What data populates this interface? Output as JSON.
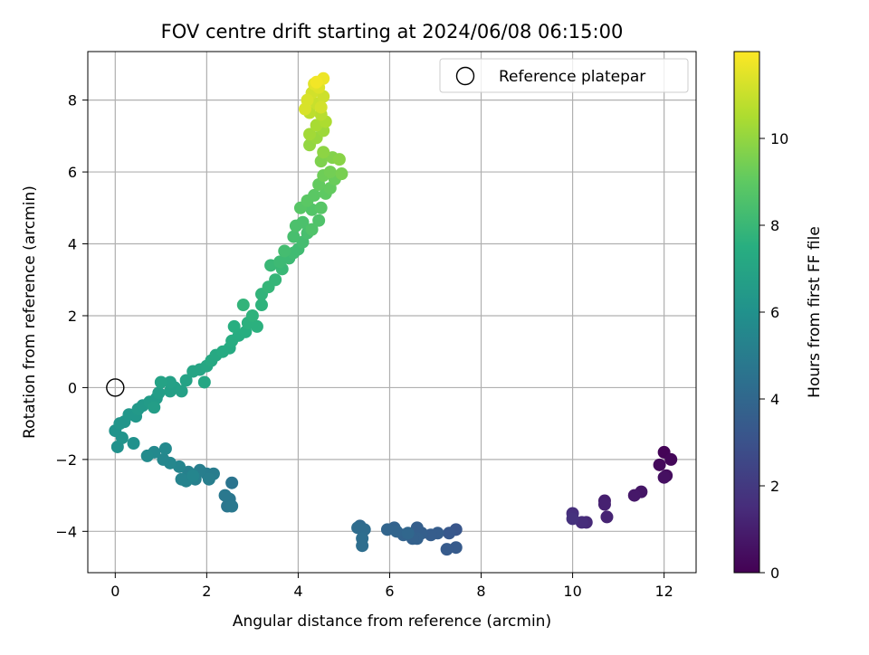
{
  "chart_data": {
    "type": "scatter",
    "title": "FOV centre drift starting at 2024/06/08 06:15:00",
    "xlabel": "Angular distance from reference (arcmin)",
    "ylabel": "Rotation from reference (arcmin)",
    "colorbar_label": "Hours from first FF file",
    "colormap": "viridis",
    "xlim": [
      -0.6,
      12.7
    ],
    "ylim": [
      -5.15,
      9.35
    ],
    "clim": [
      0,
      12
    ],
    "xticks": [
      0,
      2,
      4,
      6,
      8,
      10,
      12
    ],
    "yticks": [
      -4,
      -2,
      0,
      2,
      4,
      6,
      8
    ],
    "cticks": [
      0,
      2,
      4,
      6,
      8,
      10
    ],
    "grid": true,
    "legend": {
      "position": "top-right",
      "entries": [
        {
          "label": "Reference platepar",
          "marker": "open-circle"
        }
      ]
    },
    "reference_point": {
      "x": 0,
      "y": 0
    },
    "points": [
      [
        12.0,
        -1.8,
        0.1
      ],
      [
        12.15,
        -2.0,
        0.2
      ],
      [
        11.9,
        -2.15,
        0.3
      ],
      [
        12.05,
        -2.45,
        0.4
      ],
      [
        12.0,
        -2.5,
        0.5
      ],
      [
        11.5,
        -2.9,
        0.7
      ],
      [
        11.35,
        -3.0,
        0.8
      ],
      [
        10.7,
        -3.15,
        1.0
      ],
      [
        10.7,
        -3.25,
        1.1
      ],
      [
        10.75,
        -3.6,
        1.2
      ],
      [
        10.3,
        -3.75,
        1.4
      ],
      [
        10.2,
        -3.75,
        1.5
      ],
      [
        10.0,
        -3.5,
        1.6
      ],
      [
        10.0,
        -3.65,
        1.7
      ],
      [
        7.45,
        -3.95,
        3.2
      ],
      [
        7.3,
        -4.05,
        3.3
      ],
      [
        7.45,
        -4.45,
        3.4
      ],
      [
        7.25,
        -4.5,
        3.4
      ],
      [
        7.05,
        -4.05,
        3.5
      ],
      [
        6.9,
        -4.1,
        3.5
      ],
      [
        6.7,
        -4.05,
        3.6
      ],
      [
        6.6,
        -3.9,
        3.6
      ],
      [
        6.6,
        -4.2,
        3.7
      ],
      [
        6.5,
        -4.2,
        3.7
      ],
      [
        6.3,
        -4.1,
        3.8
      ],
      [
        6.1,
        -3.9,
        3.8
      ],
      [
        6.15,
        -4.0,
        3.9
      ],
      [
        5.95,
        -3.95,
        3.9
      ],
      [
        6.4,
        -4.05,
        4.0
      ],
      [
        5.35,
        -3.85,
        4.1
      ],
      [
        5.45,
        -3.95,
        4.2
      ],
      [
        5.3,
        -3.9,
        4.2
      ],
      [
        5.4,
        -4.2,
        4.3
      ],
      [
        5.4,
        -4.4,
        4.3
      ],
      [
        2.55,
        -2.65,
        4.6
      ],
      [
        2.5,
        -3.1,
        4.7
      ],
      [
        2.45,
        -3.3,
        4.7
      ],
      [
        2.55,
        -3.3,
        4.8
      ],
      [
        2.4,
        -3.0,
        4.8
      ],
      [
        2.15,
        -2.4,
        5.0
      ],
      [
        2.0,
        -2.4,
        5.0
      ],
      [
        2.05,
        -2.55,
        5.1
      ],
      [
        1.85,
        -2.3,
        5.1
      ],
      [
        1.75,
        -2.55,
        5.2
      ],
      [
        1.6,
        -2.35,
        5.2
      ],
      [
        1.55,
        -2.6,
        5.3
      ],
      [
        1.45,
        -2.55,
        5.3
      ],
      [
        1.7,
        -2.45,
        5.4
      ],
      [
        1.4,
        -2.2,
        5.4
      ],
      [
        1.2,
        -2.1,
        5.5
      ],
      [
        1.05,
        -2.0,
        5.5
      ],
      [
        1.1,
        -1.7,
        5.6
      ],
      [
        0.85,
        -1.8,
        5.6
      ],
      [
        0.7,
        -1.9,
        5.7
      ],
      [
        0.4,
        -1.55,
        6.0
      ],
      [
        0.05,
        -1.65,
        6.0
      ],
      [
        0.15,
        -1.4,
        6.1
      ],
      [
        0.0,
        -1.2,
        6.1
      ],
      [
        0.1,
        -1.0,
        6.2
      ],
      [
        0.2,
        -0.95,
        6.2
      ],
      [
        0.3,
        -0.75,
        6.3
      ],
      [
        0.45,
        -0.8,
        6.3
      ],
      [
        0.5,
        -0.6,
        6.4
      ],
      [
        0.6,
        -0.5,
        6.4
      ],
      [
        0.75,
        -0.4,
        6.5
      ],
      [
        0.9,
        -0.3,
        6.5
      ],
      [
        0.85,
        -0.55,
        6.6
      ],
      [
        0.95,
        -0.15,
        6.6
      ],
      [
        1.2,
        -0.1,
        6.7
      ],
      [
        1.3,
        0.0,
        6.7
      ],
      [
        1.45,
        -0.1,
        6.8
      ],
      [
        1.2,
        0.15,
        6.8
      ],
      [
        1.0,
        0.15,
        6.9
      ],
      [
        1.55,
        0.2,
        6.9
      ],
      [
        1.7,
        0.45,
        7.0
      ],
      [
        1.85,
        0.5,
        7.0
      ],
      [
        1.95,
        0.15,
        7.1
      ],
      [
        2.0,
        0.6,
        7.1
      ],
      [
        2.1,
        0.75,
        7.2
      ],
      [
        2.2,
        0.9,
        7.2
      ],
      [
        2.35,
        1.0,
        7.3
      ],
      [
        2.5,
        1.1,
        7.3
      ],
      [
        2.55,
        1.3,
        7.4
      ],
      [
        2.7,
        1.45,
        7.4
      ],
      [
        2.85,
        1.55,
        7.5
      ],
      [
        2.6,
        1.7,
        7.5
      ],
      [
        2.9,
        1.8,
        7.6
      ],
      [
        3.1,
        1.7,
        7.6
      ],
      [
        3.0,
        2.0,
        7.7
      ],
      [
        3.2,
        2.3,
        7.7
      ],
      [
        2.8,
        2.3,
        7.8
      ],
      [
        3.2,
        2.6,
        7.8
      ],
      [
        3.35,
        2.8,
        7.9
      ],
      [
        3.5,
        3.0,
        7.9
      ],
      [
        3.65,
        3.3,
        8.0
      ],
      [
        3.4,
        3.4,
        8.0
      ],
      [
        3.6,
        3.5,
        8.1
      ],
      [
        3.8,
        3.6,
        8.1
      ],
      [
        3.9,
        3.75,
        8.2
      ],
      [
        4.0,
        3.85,
        8.2
      ],
      [
        3.7,
        3.8,
        8.3
      ],
      [
        4.1,
        4.05,
        8.3
      ],
      [
        3.9,
        4.2,
        8.4
      ],
      [
        4.2,
        4.3,
        8.4
      ],
      [
        3.95,
        4.5,
        8.5
      ],
      [
        4.1,
        4.6,
        8.5
      ],
      [
        4.3,
        4.4,
        8.6
      ],
      [
        4.45,
        4.65,
        8.6
      ],
      [
        4.3,
        4.95,
        8.7
      ],
      [
        4.05,
        5.0,
        8.8
      ],
      [
        4.5,
        5.0,
        8.8
      ],
      [
        4.2,
        5.2,
        8.9
      ],
      [
        4.35,
        5.35,
        8.9
      ],
      [
        4.6,
        5.4,
        9.0
      ],
      [
        4.7,
        5.55,
        9.1
      ],
      [
        4.45,
        5.65,
        9.1
      ],
      [
        4.8,
        5.8,
        9.2
      ],
      [
        4.55,
        5.9,
        9.3
      ],
      [
        4.7,
        6.0,
        9.4
      ],
      [
        4.95,
        5.95,
        9.5
      ],
      [
        4.5,
        6.3,
        9.6
      ],
      [
        4.75,
        6.4,
        9.7
      ],
      [
        4.9,
        6.35,
        9.8
      ],
      [
        4.55,
        6.55,
        9.9
      ],
      [
        4.25,
        6.75,
        10.0
      ],
      [
        4.4,
        6.95,
        10.1
      ],
      [
        4.55,
        7.15,
        10.2
      ],
      [
        4.25,
        7.05,
        10.3
      ],
      [
        4.4,
        7.3,
        10.4
      ],
      [
        4.6,
        7.4,
        10.5
      ],
      [
        4.5,
        7.6,
        10.7
      ],
      [
        4.25,
        7.65,
        10.8
      ],
      [
        4.4,
        7.9,
        11.0
      ],
      [
        4.55,
        8.1,
        11.1
      ],
      [
        4.3,
        8.2,
        11.2
      ],
      [
        4.2,
        8.0,
        11.3
      ],
      [
        4.45,
        8.35,
        11.4
      ],
      [
        4.35,
        8.45,
        11.5
      ],
      [
        4.55,
        8.6,
        11.7
      ],
      [
        4.4,
        8.5,
        11.8
      ],
      [
        4.15,
        7.75,
        11.3
      ],
      [
        4.5,
        7.8,
        11.2
      ]
    ]
  }
}
